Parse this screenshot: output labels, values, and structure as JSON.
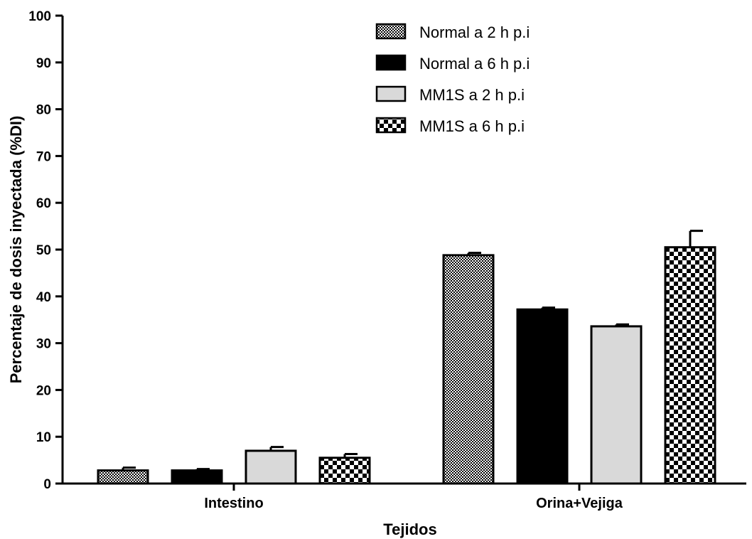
{
  "chart_data": {
    "type": "bar",
    "xlabel": "Tejidos",
    "ylabel": "Percentaje de dosis inyectada (%DI)",
    "ylim": [
      0,
      100
    ],
    "yticks": [
      0,
      10,
      20,
      30,
      40,
      50,
      60,
      70,
      80,
      90,
      100
    ],
    "categories": [
      "Intestino",
      "Orina+Vejiga"
    ],
    "series": [
      {
        "name": "Normal a 2 h p.i",
        "values": [
          2.8,
          48.8
        ],
        "errors": [
          0.6,
          0.5
        ],
        "fill": "fine-check",
        "color": "#000000"
      },
      {
        "name": "Normal a 6 h p.i",
        "values": [
          2.8,
          37.2
        ],
        "errors": [
          0.3,
          0.4
        ],
        "fill": "solid",
        "color": "#000000"
      },
      {
        "name": "MM1S a 2 h p.i",
        "values": [
          7.0,
          33.6
        ],
        "errors": [
          0.8,
          0.4
        ],
        "fill": "solid",
        "color": "#d9d9d9"
      },
      {
        "name": "MM1S a 6 h p.i",
        "values": [
          5.5,
          50.5
        ],
        "errors": [
          0.8,
          3.5
        ],
        "fill": "coarse-check",
        "color": "#000000"
      }
    ],
    "legend_position": "top-right",
    "grid": false
  }
}
